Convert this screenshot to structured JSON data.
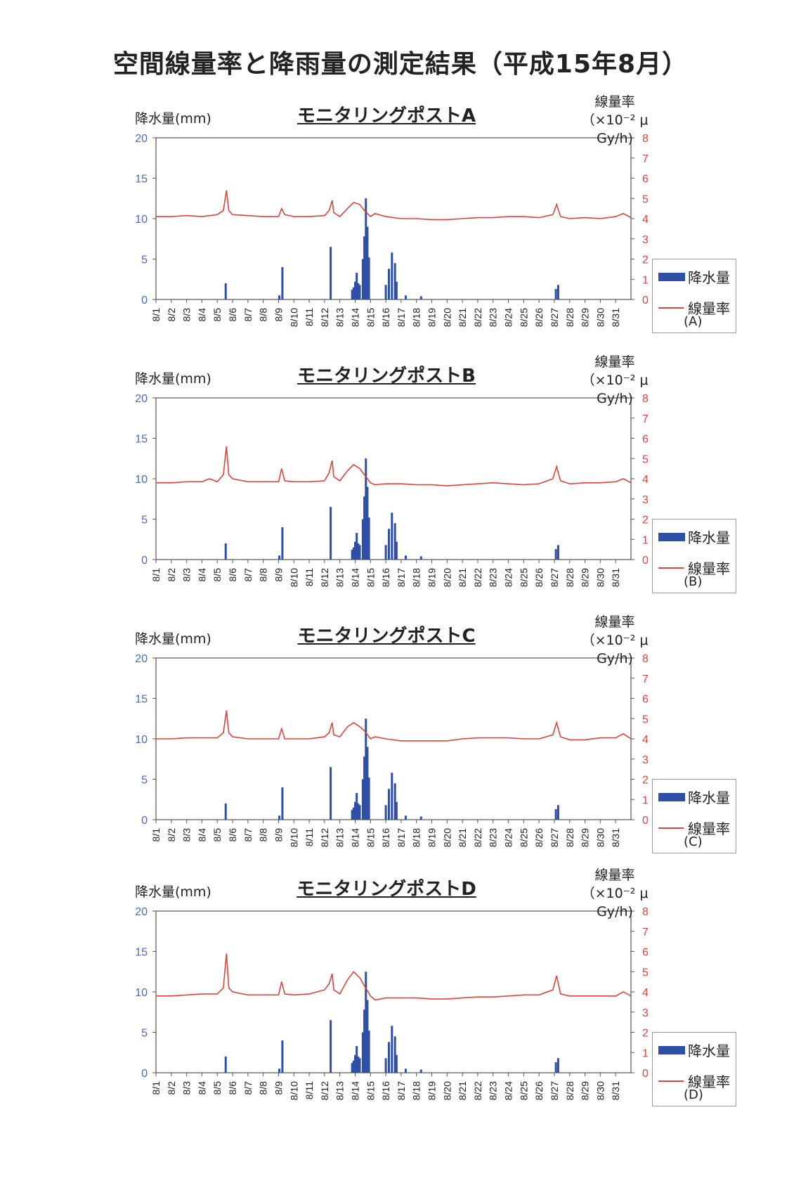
{
  "page_title": "空間線量率と降雨量の測定結果（平成15年8月）",
  "colors": {
    "rain": "#2e4fa8",
    "dose": "#d9453d",
    "axis_left": "#4a6bb5",
    "axis_right": "#d9453d"
  },
  "common": {
    "ylabel": "降水量(mm)",
    "y2label_line1": "線量率",
    "y2label_line2": "（×10⁻² μ Gy/h)",
    "legend_rain": "降水量",
    "legend_dose": "線量率",
    "yticks": [
      "0",
      "5",
      "10",
      "15",
      "20"
    ],
    "y2ticks": [
      "0",
      "1",
      "2",
      "3",
      "4",
      "5",
      "6",
      "7",
      "8"
    ],
    "xticks": [
      "8/1",
      "8/2",
      "8/3",
      "8/4",
      "8/5",
      "8/6",
      "8/7",
      "8/8",
      "8/9",
      "8/10",
      "8/11",
      "8/12",
      "8/13",
      "8/14",
      "8/15",
      "8/16",
      "8/17",
      "8/18",
      "8/19",
      "8/20",
      "8/21",
      "8/22",
      "8/23",
      "8/24",
      "8/25",
      "8/26",
      "8/27",
      "8/28",
      "8/29",
      "8/30",
      "8/31"
    ]
  },
  "chart_data": [
    {
      "type": "bar+line",
      "title": "モニタリングポストA",
      "legend_sub": "(A)",
      "ylim": [
        0,
        20
      ],
      "y2lim": [
        0,
        8
      ],
      "x_range_days": [
        1,
        32
      ],
      "rain": [
        [
          5.55,
          2
        ],
        [
          9.05,
          0.5
        ],
        [
          9.25,
          4
        ],
        [
          12.4,
          6.5
        ],
        [
          13.8,
          1.2
        ],
        [
          13.9,
          1.5
        ],
        [
          14.0,
          2.2
        ],
        [
          14.1,
          3.3
        ],
        [
          14.2,
          2.0
        ],
        [
          14.3,
          1.8
        ],
        [
          14.5,
          5.0
        ],
        [
          14.6,
          7.8
        ],
        [
          14.7,
          12.5
        ],
        [
          14.8,
          9.0
        ],
        [
          14.9,
          5.2
        ],
        [
          16.0,
          1.8
        ],
        [
          16.2,
          3.8
        ],
        [
          16.4,
          5.8
        ],
        [
          16.6,
          4.5
        ],
        [
          16.7,
          2.2
        ],
        [
          17.3,
          0.5
        ],
        [
          18.3,
          0.4
        ],
        [
          27.1,
          1.3
        ],
        [
          27.25,
          1.8
        ]
      ],
      "dose": [
        [
          1,
          4.1
        ],
        [
          2,
          4.1
        ],
        [
          3,
          4.15
        ],
        [
          4,
          4.1
        ],
        [
          5,
          4.2
        ],
        [
          5.4,
          4.4
        ],
        [
          5.6,
          5.4
        ],
        [
          5.75,
          4.4
        ],
        [
          6,
          4.2
        ],
        [
          7,
          4.15
        ],
        [
          8,
          4.1
        ],
        [
          9,
          4.1
        ],
        [
          9.2,
          4.5
        ],
        [
          9.4,
          4.2
        ],
        [
          10,
          4.1
        ],
        [
          11,
          4.1
        ],
        [
          12,
          4.15
        ],
        [
          12.3,
          4.4
        ],
        [
          12.5,
          4.9
        ],
        [
          12.6,
          4.3
        ],
        [
          13,
          4.1
        ],
        [
          13.5,
          4.5
        ],
        [
          13.9,
          4.8
        ],
        [
          14.3,
          4.7
        ],
        [
          14.6,
          4.4
        ],
        [
          15,
          4.1
        ],
        [
          15.3,
          4.25
        ],
        [
          16,
          4.1
        ],
        [
          17,
          4.0
        ],
        [
          18,
          4.0
        ],
        [
          19,
          3.95
        ],
        [
          20,
          3.95
        ],
        [
          21,
          4.0
        ],
        [
          22,
          4.05
        ],
        [
          23,
          4.05
        ],
        [
          24,
          4.1
        ],
        [
          25,
          4.1
        ],
        [
          26,
          4.05
        ],
        [
          26.9,
          4.2
        ],
        [
          27.15,
          4.7
        ],
        [
          27.4,
          4.1
        ],
        [
          28,
          4.0
        ],
        [
          29,
          4.05
        ],
        [
          30,
          4.0
        ],
        [
          31,
          4.1
        ],
        [
          31.5,
          4.25
        ],
        [
          32,
          4.05
        ]
      ]
    },
    {
      "type": "bar+line",
      "title": "モニタリングポストB",
      "legend_sub": "(B)",
      "ylim": [
        0,
        20
      ],
      "y2lim": [
        0,
        8
      ],
      "x_range_days": [
        1,
        32
      ],
      "rain": [
        [
          5.55,
          2
        ],
        [
          9.05,
          0.5
        ],
        [
          9.25,
          4
        ],
        [
          12.4,
          6.5
        ],
        [
          13.8,
          1.2
        ],
        [
          13.9,
          1.5
        ],
        [
          14.0,
          2.2
        ],
        [
          14.1,
          3.3
        ],
        [
          14.2,
          2.0
        ],
        [
          14.3,
          1.8
        ],
        [
          14.5,
          5.0
        ],
        [
          14.6,
          7.8
        ],
        [
          14.7,
          12.5
        ],
        [
          14.8,
          9.0
        ],
        [
          14.9,
          5.2
        ],
        [
          16.0,
          1.8
        ],
        [
          16.2,
          3.8
        ],
        [
          16.4,
          5.8
        ],
        [
          16.6,
          4.5
        ],
        [
          16.7,
          2.2
        ],
        [
          17.3,
          0.5
        ],
        [
          18.3,
          0.4
        ],
        [
          27.1,
          1.3
        ],
        [
          27.25,
          1.8
        ]
      ],
      "dose": [
        [
          1,
          3.8
        ],
        [
          2,
          3.8
        ],
        [
          3,
          3.85
        ],
        [
          4,
          3.85
        ],
        [
          4.5,
          4.0
        ],
        [
          5,
          3.85
        ],
        [
          5.4,
          4.2
        ],
        [
          5.6,
          5.6
        ],
        [
          5.75,
          4.2
        ],
        [
          6,
          4.0
        ],
        [
          7,
          3.85
        ],
        [
          8,
          3.85
        ],
        [
          9,
          3.85
        ],
        [
          9.2,
          4.5
        ],
        [
          9.4,
          3.9
        ],
        [
          10,
          3.85
        ],
        [
          11,
          3.85
        ],
        [
          12,
          3.9
        ],
        [
          12.3,
          4.3
        ],
        [
          12.5,
          4.9
        ],
        [
          12.6,
          4.1
        ],
        [
          13,
          3.9
        ],
        [
          13.5,
          4.4
        ],
        [
          13.9,
          4.7
        ],
        [
          14.3,
          4.5
        ],
        [
          14.6,
          4.2
        ],
        [
          15,
          3.8
        ],
        [
          15.3,
          3.7
        ],
        [
          16,
          3.75
        ],
        [
          17,
          3.75
        ],
        [
          18,
          3.7
        ],
        [
          19,
          3.7
        ],
        [
          20,
          3.65
        ],
        [
          21,
          3.7
        ],
        [
          22,
          3.75
        ],
        [
          23,
          3.8
        ],
        [
          24,
          3.75
        ],
        [
          25,
          3.7
        ],
        [
          26,
          3.75
        ],
        [
          26.9,
          4.0
        ],
        [
          27.15,
          4.6
        ],
        [
          27.4,
          3.9
        ],
        [
          28,
          3.75
        ],
        [
          29,
          3.8
        ],
        [
          30,
          3.8
        ],
        [
          31,
          3.85
        ],
        [
          31.5,
          4.0
        ],
        [
          32,
          3.8
        ]
      ]
    },
    {
      "type": "bar+line",
      "title": "モニタリングポストC",
      "legend_sub": "(C)",
      "ylim": [
        0,
        20
      ],
      "y2lim": [
        0,
        8
      ],
      "x_range_days": [
        1,
        32
      ],
      "rain": [
        [
          5.55,
          2
        ],
        [
          9.05,
          0.5
        ],
        [
          9.25,
          4
        ],
        [
          12.4,
          6.5
        ],
        [
          13.8,
          1.2
        ],
        [
          13.9,
          1.5
        ],
        [
          14.0,
          2.2
        ],
        [
          14.1,
          3.3
        ],
        [
          14.2,
          2.0
        ],
        [
          14.3,
          1.8
        ],
        [
          14.5,
          5.0
        ],
        [
          14.6,
          7.8
        ],
        [
          14.7,
          12.5
        ],
        [
          14.8,
          9.0
        ],
        [
          14.9,
          5.2
        ],
        [
          16.0,
          1.8
        ],
        [
          16.2,
          3.8
        ],
        [
          16.4,
          5.8
        ],
        [
          16.6,
          4.5
        ],
        [
          16.7,
          2.2
        ],
        [
          17.3,
          0.5
        ],
        [
          18.3,
          0.4
        ],
        [
          27.1,
          1.3
        ],
        [
          27.25,
          1.8
        ]
      ],
      "dose": [
        [
          1,
          4.0
        ],
        [
          2,
          4.0
        ],
        [
          3,
          4.05
        ],
        [
          4,
          4.05
        ],
        [
          5,
          4.05
        ],
        [
          5.4,
          4.3
        ],
        [
          5.6,
          5.4
        ],
        [
          5.75,
          4.3
        ],
        [
          6,
          4.1
        ],
        [
          7,
          4.0
        ],
        [
          8,
          4.0
        ],
        [
          9,
          4.0
        ],
        [
          9.2,
          4.5
        ],
        [
          9.4,
          4.0
        ],
        [
          10,
          4.0
        ],
        [
          11,
          4.0
        ],
        [
          12,
          4.1
        ],
        [
          12.3,
          4.3
        ],
        [
          12.5,
          4.8
        ],
        [
          12.6,
          4.2
        ],
        [
          13,
          4.1
        ],
        [
          13.5,
          4.6
        ],
        [
          13.9,
          4.8
        ],
        [
          14.3,
          4.6
        ],
        [
          14.6,
          4.4
        ],
        [
          15,
          4.0
        ],
        [
          15.3,
          4.1
        ],
        [
          16,
          4.0
        ],
        [
          17,
          3.9
        ],
        [
          18,
          3.9
        ],
        [
          19,
          3.9
        ],
        [
          20,
          3.9
        ],
        [
          21,
          4.0
        ],
        [
          22,
          4.05
        ],
        [
          23,
          4.05
        ],
        [
          24,
          4.05
        ],
        [
          25,
          4.0
        ],
        [
          26,
          4.0
        ],
        [
          26.9,
          4.2
        ],
        [
          27.15,
          4.8
        ],
        [
          27.4,
          4.1
        ],
        [
          28,
          3.95
        ],
        [
          29,
          3.95
        ],
        [
          30,
          4.05
        ],
        [
          31,
          4.05
        ],
        [
          31.5,
          4.25
        ],
        [
          32,
          4.0
        ]
      ]
    },
    {
      "type": "bar+line",
      "title": "モニタリングポストD",
      "legend_sub": "(D)",
      "ylim": [
        0,
        20
      ],
      "y2lim": [
        0,
        8
      ],
      "x_range_days": [
        1,
        32
      ],
      "rain": [
        [
          5.55,
          2
        ],
        [
          9.05,
          0.5
        ],
        [
          9.25,
          4
        ],
        [
          12.4,
          6.5
        ],
        [
          13.8,
          1.2
        ],
        [
          13.9,
          1.5
        ],
        [
          14.0,
          2.2
        ],
        [
          14.1,
          3.3
        ],
        [
          14.2,
          2.0
        ],
        [
          14.3,
          1.8
        ],
        [
          14.5,
          5.0
        ],
        [
          14.6,
          7.8
        ],
        [
          14.7,
          12.5
        ],
        [
          14.8,
          9.0
        ],
        [
          14.9,
          5.2
        ],
        [
          16.0,
          1.8
        ],
        [
          16.2,
          3.8
        ],
        [
          16.4,
          5.8
        ],
        [
          16.6,
          4.5
        ],
        [
          16.7,
          2.2
        ],
        [
          17.3,
          0.5
        ],
        [
          18.3,
          0.4
        ],
        [
          27.1,
          1.3
        ],
        [
          27.25,
          1.8
        ]
      ],
      "dose": [
        [
          1,
          3.8
        ],
        [
          2,
          3.8
        ],
        [
          3,
          3.85
        ],
        [
          4,
          3.9
        ],
        [
          5,
          3.9
        ],
        [
          5.4,
          4.2
        ],
        [
          5.6,
          5.9
        ],
        [
          5.75,
          4.2
        ],
        [
          6,
          4.0
        ],
        [
          7,
          3.85
        ],
        [
          8,
          3.85
        ],
        [
          9,
          3.85
        ],
        [
          9.2,
          4.5
        ],
        [
          9.4,
          3.9
        ],
        [
          10,
          3.85
        ],
        [
          11,
          3.9
        ],
        [
          12,
          4.1
        ],
        [
          12.3,
          4.4
        ],
        [
          12.5,
          4.9
        ],
        [
          12.6,
          4.1
        ],
        [
          13,
          3.9
        ],
        [
          13.5,
          4.6
        ],
        [
          13.9,
          5.0
        ],
        [
          14.3,
          4.7
        ],
        [
          14.6,
          4.3
        ],
        [
          15,
          3.8
        ],
        [
          15.3,
          3.6
        ],
        [
          16,
          3.7
        ],
        [
          17,
          3.7
        ],
        [
          18,
          3.7
        ],
        [
          19,
          3.65
        ],
        [
          20,
          3.65
        ],
        [
          21,
          3.7
        ],
        [
          22,
          3.75
        ],
        [
          23,
          3.75
        ],
        [
          24,
          3.8
        ],
        [
          25,
          3.85
        ],
        [
          26,
          3.85
        ],
        [
          26.9,
          4.1
        ],
        [
          27.15,
          4.8
        ],
        [
          27.4,
          3.9
        ],
        [
          28,
          3.8
        ],
        [
          29,
          3.8
        ],
        [
          30,
          3.8
        ],
        [
          31,
          3.8
        ],
        [
          31.5,
          4.0
        ],
        [
          32,
          3.8
        ]
      ]
    }
  ]
}
